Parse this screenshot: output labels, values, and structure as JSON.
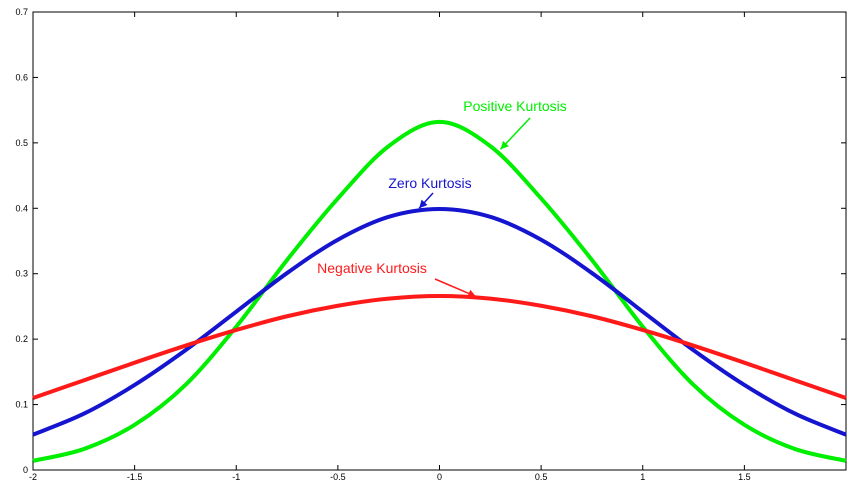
{
  "colors": {
    "positive": "#00ee00",
    "zero": "#1515d0",
    "negative": "#ff1a1a",
    "axis": "#000000",
    "background": "#ffffff"
  },
  "chart_data": {
    "type": "line",
    "title": "",
    "xlabel": "",
    "ylabel": "",
    "xlim": [
      -2,
      2
    ],
    "ylim": [
      0,
      0.7
    ],
    "grid": false,
    "legend": "none",
    "x_ticks": [
      -2,
      -1.5,
      -1,
      -0.5,
      0,
      0.5,
      1,
      1.5
    ],
    "x_tick_labels": [
      "-2",
      "-1.5",
      "-1",
      "-0.5",
      "0",
      "0.5",
      "1",
      "1.5"
    ],
    "y_ticks": [
      0,
      0.1,
      0.2,
      0.3,
      0.4,
      0.5,
      0.6,
      0.7
    ],
    "y_tick_labels": [
      "0",
      "0.1",
      "0.2",
      "0.3",
      "0.4",
      "0.5",
      "0.6",
      "0.7"
    ],
    "x": [
      -2.0,
      -1.75,
      -1.5,
      -1.25,
      -1.0,
      -0.75,
      -0.5,
      -0.25,
      0.0,
      0.25,
      0.5,
      0.75,
      1.0,
      1.25,
      1.5,
      1.75,
      2.0
    ],
    "series": [
      {
        "key": "positive",
        "values": [
          0.014,
          0.032,
          0.069,
          0.13,
          0.219,
          0.321,
          0.415,
          0.495,
          0.532,
          0.495,
          0.415,
          0.321,
          0.219,
          0.13,
          0.069,
          0.032,
          0.014
        ]
      },
      {
        "key": "zero",
        "values": [
          0.054,
          0.086,
          0.13,
          0.183,
          0.242,
          0.301,
          0.352,
          0.387,
          0.399,
          0.387,
          0.352,
          0.301,
          0.242,
          0.183,
          0.13,
          0.086,
          0.054
        ]
      },
      {
        "key": "negative",
        "values": [
          0.11,
          0.137,
          0.164,
          0.19,
          0.214,
          0.235,
          0.251,
          0.262,
          0.266,
          0.262,
          0.251,
          0.235,
          0.214,
          0.19,
          0.164,
          0.137,
          0.11
        ]
      }
    ],
    "annotations": [
      {
        "key": "positive",
        "text": "Positive Kurtosis",
        "anchor_x": 0.3,
        "anchor_y": 0.49
      },
      {
        "key": "zero",
        "text": "Zero Kurtosis",
        "anchor_x": -0.1,
        "anchor_y": 0.4
      },
      {
        "key": "negative",
        "text": "Negative Kurtosis",
        "anchor_x": 0.18,
        "anchor_y": 0.265
      }
    ]
  }
}
